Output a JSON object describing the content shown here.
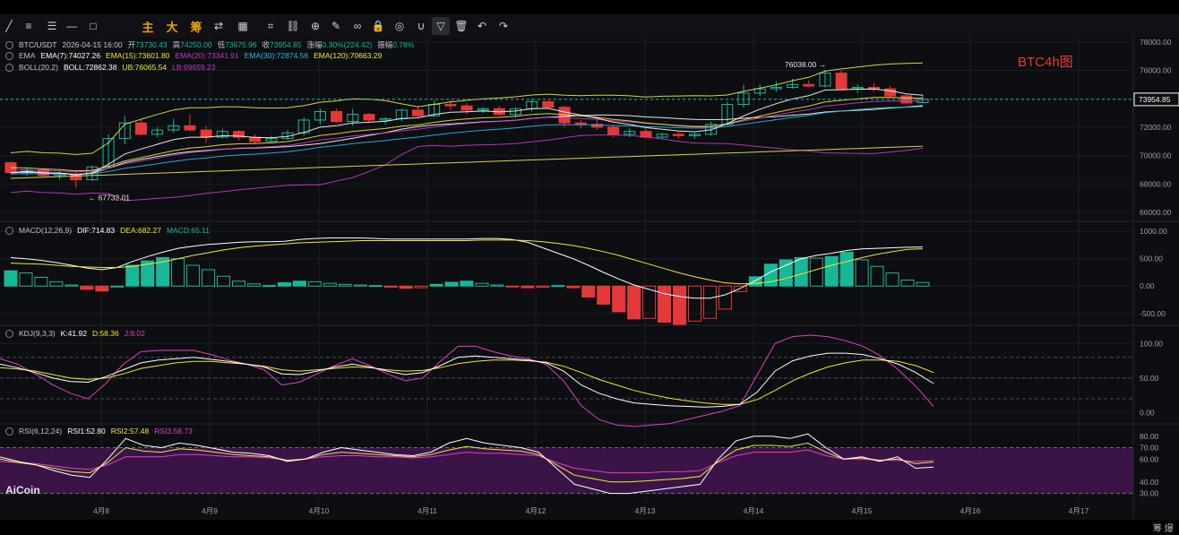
{
  "toolbar": {
    "items": [
      {
        "name": "line-tool-icon",
        "glyph": "╱"
      },
      {
        "name": "menu-icon",
        "glyph": "≡"
      },
      {
        "name": "multi-line-icon",
        "glyph": "☰"
      },
      {
        "name": "horizontal-line-icon",
        "glyph": "—"
      },
      {
        "name": "rectangle-icon",
        "glyph": "□"
      },
      {
        "name": "main-chart-button",
        "glyph": "主"
      },
      {
        "name": "big-order-button",
        "glyph": "大"
      },
      {
        "name": "chip-button",
        "glyph": "筹"
      },
      {
        "name": "convert-icon",
        "glyph": "⇄"
      },
      {
        "name": "image-icon",
        "glyph": "▦"
      },
      {
        "name": "crop-icon",
        "glyph": "⌗"
      },
      {
        "name": "link-icon",
        "glyph": "⛓"
      },
      {
        "name": "zoom-icon",
        "glyph": "⊕"
      },
      {
        "name": "brush-icon",
        "glyph": "✎"
      },
      {
        "name": "glasses-icon",
        "glyph": "∞"
      },
      {
        "name": "lock-icon",
        "glyph": "🔒"
      },
      {
        "name": "eye-icon",
        "glyph": "◎"
      },
      {
        "name": "magnet-icon",
        "glyph": "∪"
      },
      {
        "name": "filter-icon",
        "glyph": "▽"
      },
      {
        "name": "trash-icon",
        "glyph": "🗑"
      },
      {
        "name": "undo-icon",
        "glyph": "↶"
      },
      {
        "name": "redo-icon",
        "glyph": "↷"
      }
    ]
  },
  "header": {
    "pair": "BTC/USDT",
    "datetime": "2026-04-15 16:00",
    "open_label": "开",
    "open": "73730.43",
    "high_label": "高",
    "high": "74250.00",
    "low_label": "低",
    "low": "73675.96",
    "close_label": "收",
    "close": "73954.85",
    "change_label": "涨幅",
    "change": "0.30%(224.42)",
    "amp_label": "振幅",
    "amp": "0.78%"
  },
  "ema_legend": {
    "name": "EMA",
    "ema7": "EMA(7):74027.26",
    "ema15": "EMA(15):73601.80",
    "ema20": "EMA(20):73341.91",
    "ema30": "EMA(30):72874.56",
    "ema120": "EMA(120):70663.29"
  },
  "boll_legend": {
    "name": "BOLL(20,2)",
    "boll": "BOLL:72862.38",
    "ub": "UB:76065.54",
    "lb": "LB:69659.23"
  },
  "macd_legend": {
    "name": "MACD(12,26,9)",
    "dif": "DIF:714.83",
    "dea": "DEA:682.27",
    "macd": "MACD:65.11"
  },
  "kdj_legend": {
    "name": "KDJ(9,3,3)",
    "k": "K:41.92",
    "d": "D:58.36",
    "j": "J:9.02"
  },
  "rsi_legend": {
    "name": "RSI(6,12,24)",
    "rsi1": "RSI1:52.80",
    "rsi2": "RSI2:57.48",
    "rsi3": "RSI3:58.73"
  },
  "annotations": {
    "high": "76038.00",
    "low": "67732.01",
    "current_price": "73954.85"
  },
  "corner_title": "BTC4h图",
  "watermark": "AiCoin",
  "footer_glyphs": "筹 爆",
  "colors": {
    "up": "#17b897",
    "down": "#e5383b",
    "ema7": "#ffffff",
    "ema15": "#f0e442",
    "ema20": "#c23cc4",
    "ema30": "#2fb5e8",
    "ema120": "#e8e85a",
    "boll_mid": "#ffffff",
    "boll_ub": "#e8e85a",
    "boll_lb": "#c23cc4",
    "dif": "#ffffff",
    "dea": "#f0e442",
    "k": "#ffffff",
    "d": "#f0e442",
    "j": "#e040c0",
    "rsi1": "#ffffff",
    "rsi2": "#f0e442",
    "rsi3": "#e040c0"
  },
  "chart_data": [
    {
      "type": "candlestick",
      "panel": "price",
      "x_ticks": [
        "4月8",
        "4月9",
        "4月10",
        "4月11",
        "4月12",
        "4月13",
        "4月14",
        "4月15",
        "4月16",
        "4月17"
      ],
      "y_ticks": [
        66000,
        68000,
        70000,
        72000,
        74000,
        76000,
        78000
      ],
      "ylim": [
        65500,
        78300
      ],
      "candles": [
        [
          69500,
          69600,
          68700,
          68800
        ],
        [
          68800,
          69100,
          68600,
          69000
        ],
        [
          69000,
          69100,
          68500,
          68600
        ],
        [
          68600,
          68900,
          68300,
          68700
        ],
        [
          68700,
          68900,
          67732,
          68300
        ],
        [
          68300,
          69300,
          68200,
          69200
        ],
        [
          69200,
          71500,
          69100,
          71200
        ],
        [
          71200,
          72800,
          70800,
          72300
        ],
        [
          72300,
          72500,
          71400,
          71500
        ],
        [
          71500,
          72000,
          71300,
          71800
        ],
        [
          71800,
          72600,
          71600,
          72100
        ],
        [
          72100,
          72900,
          71700,
          71800
        ],
        [
          71800,
          72100,
          70900,
          71300
        ],
        [
          71300,
          71900,
          71200,
          71700
        ],
        [
          71700,
          71800,
          71100,
          71300
        ],
        [
          71300,
          71500,
          70800,
          71000
        ],
        [
          71000,
          71400,
          70900,
          71200
        ],
        [
          71200,
          71800,
          71100,
          71600
        ],
        [
          71600,
          72700,
          71400,
          72500
        ],
        [
          72500,
          73300,
          72200,
          73100
        ],
        [
          73100,
          73300,
          72300,
          72400
        ],
        [
          72400,
          73300,
          72100,
          72900
        ],
        [
          72900,
          73000,
          72300,
          72500
        ],
        [
          72500,
          72700,
          72200,
          72600
        ],
        [
          72600,
          73300,
          72400,
          73200
        ],
        [
          73200,
          73500,
          72700,
          72800
        ],
        [
          72800,
          73900,
          72700,
          73600
        ],
        [
          73600,
          73900,
          73200,
          73500
        ],
        [
          73500,
          73700,
          72900,
          73200
        ],
        [
          73200,
          73400,
          73000,
          73300
        ],
        [
          73300,
          73500,
          72800,
          72900
        ],
        [
          72900,
          73400,
          72700,
          73300
        ],
        [
          73300,
          74000,
          73100,
          73800
        ],
        [
          73800,
          73900,
          73300,
          73400
        ],
        [
          73400,
          73500,
          72000,
          72300
        ],
        [
          72300,
          72500,
          71900,
          72200
        ],
        [
          72200,
          72600,
          71800,
          72000
        ],
        [
          72000,
          72200,
          71300,
          71500
        ],
        [
          71500,
          71900,
          71300,
          71700
        ],
        [
          71700,
          71900,
          71200,
          71300
        ],
        [
          71300,
          71600,
          71200,
          71500
        ],
        [
          71500,
          71700,
          71200,
          71400
        ],
        [
          71400,
          71600,
          71200,
          71500
        ],
        [
          71500,
          72400,
          71400,
          72200
        ],
        [
          72200,
          73800,
          72100,
          73600
        ],
        [
          73600,
          75000,
          73400,
          74400
        ],
        [
          74400,
          75000,
          74200,
          74700
        ],
        [
          74700,
          75200,
          74500,
          74800
        ],
        [
          74800,
          75400,
          74700,
          75000
        ],
        [
          75000,
          75300,
          74800,
          74900
        ],
        [
          74900,
          76038,
          74800,
          75800
        ],
        [
          75800,
          76000,
          74600,
          74700
        ],
        [
          74700,
          75000,
          74400,
          74800
        ],
        [
          74800,
          75100,
          74500,
          74700
        ],
        [
          74700,
          74900,
          74100,
          74200
        ],
        [
          74200,
          74300,
          73600,
          73700
        ],
        [
          73730,
          74250,
          73676,
          73955
        ]
      ]
    },
    {
      "type": "histogram",
      "panel": "macd",
      "y_ticks": [
        1000,
        500,
        0,
        -500
      ],
      "ylim": [
        -700,
        1150
      ],
      "macd": [
        280,
        240,
        160,
        80,
        20,
        -60,
        -90,
        0,
        380,
        460,
        520,
        500,
        380,
        300,
        180,
        90,
        40,
        10,
        60,
        90,
        80,
        50,
        30,
        20,
        10,
        -20,
        -40,
        -30,
        30,
        70,
        90,
        50,
        20,
        -10,
        -30,
        -20,
        10,
        -30,
        -200,
        -330,
        -470,
        -600,
        -590,
        -660,
        -700,
        -640,
        -590,
        -420,
        -100,
        170,
        400,
        480,
        520,
        510,
        540,
        620,
        480,
        360,
        240,
        110,
        65
      ],
      "dif": [
        520,
        500,
        470,
        430,
        380,
        330,
        300,
        340,
        450,
        540,
        620,
        690,
        730,
        760,
        780,
        800,
        810,
        810,
        820,
        850,
        870,
        880,
        880,
        880,
        870,
        860,
        860,
        860,
        860,
        860,
        860,
        870,
        870,
        850,
        800,
        700,
        600,
        500,
        380,
        250,
        130,
        20,
        -60,
        -140,
        -190,
        -220,
        -220,
        -160,
        -40,
        100,
        260,
        380,
        500,
        560,
        600,
        650,
        680,
        690,
        700,
        710,
        715
      ],
      "dea": [
        420,
        410,
        400,
        380,
        360,
        350,
        340,
        340,
        360,
        400,
        440,
        500,
        560,
        610,
        660,
        700,
        730,
        750,
        770,
        790,
        800,
        810,
        820,
        830,
        830,
        830,
        830,
        830,
        830,
        830,
        830,
        840,
        840,
        840,
        830,
        810,
        780,
        740,
        690,
        630,
        560,
        480,
        400,
        320,
        240,
        170,
        110,
        60,
        40,
        50,
        80,
        140,
        220,
        300,
        380,
        450,
        520,
        580,
        630,
        670,
        682
      ]
    },
    {
      "type": "line",
      "panel": "kdj",
      "y_ticks": [
        100,
        50,
        0
      ],
      "ylim": [
        -15,
        125
      ],
      "k": [
        70,
        65,
        58,
        50,
        45,
        44,
        52,
        62,
        72,
        76,
        78,
        80,
        77,
        74,
        70,
        66,
        56,
        55,
        60,
        66,
        70,
        66,
        60,
        55,
        58,
        68,
        80,
        82,
        80,
        78,
        76,
        72,
        60,
        40,
        28,
        20,
        14,
        12,
        10,
        9,
        8,
        9,
        12,
        30,
        60,
        75,
        82,
        86,
        86,
        84,
        78,
        70,
        58,
        42
      ],
      "d": [
        65,
        63,
        60,
        55,
        50,
        48,
        50,
        56,
        64,
        68,
        72,
        74,
        74,
        72,
        70,
        67,
        62,
        60,
        62,
        64,
        66,
        65,
        62,
        60,
        61,
        65,
        71,
        74,
        76,
        76,
        75,
        73,
        67,
        58,
        48,
        40,
        32,
        26,
        21,
        17,
        14,
        12,
        12,
        19,
        32,
        46,
        57,
        66,
        72,
        76,
        76,
        74,
        68,
        58
      ],
      "j": [
        78,
        70,
        56,
        40,
        28,
        20,
        42,
        70,
        88,
        90,
        90,
        90,
        84,
        76,
        70,
        62,
        40,
        44,
        56,
        68,
        78,
        68,
        56,
        46,
        50,
        74,
        96,
        96,
        88,
        82,
        78,
        70,
        46,
        10,
        -10,
        -18,
        -20,
        -18,
        -16,
        -10,
        -4,
        2,
        10,
        55,
        100,
        110,
        112,
        110,
        104,
        96,
        82,
        62,
        38,
        9
      ]
    },
    {
      "type": "line",
      "panel": "rsi",
      "y_ticks": [
        80,
        70,
        60,
        40,
        30
      ],
      "ylim": [
        25,
        90
      ],
      "rsi1": [
        62,
        58,
        55,
        50,
        46,
        44,
        60,
        78,
        72,
        70,
        74,
        72,
        69,
        66,
        65,
        63,
        58,
        60,
        66,
        70,
        68,
        66,
        64,
        63,
        66,
        74,
        78,
        74,
        72,
        70,
        66,
        52,
        38,
        34,
        30,
        30,
        32,
        34,
        36,
        38,
        60,
        76,
        80,
        80,
        78,
        82,
        70,
        60,
        62,
        58,
        62,
        52,
        53
      ],
      "rsi2": [
        60,
        57,
        55,
        52,
        49,
        48,
        57,
        70,
        67,
        66,
        69,
        68,
        66,
        64,
        63,
        62,
        59,
        60,
        64,
        66,
        65,
        64,
        63,
        62,
        64,
        68,
        71,
        69,
        68,
        67,
        64,
        55,
        46,
        43,
        40,
        40,
        41,
        42,
        43,
        45,
        58,
        68,
        72,
        72,
        71,
        74,
        66,
        60,
        61,
        59,
        60,
        56,
        57.5
      ],
      "rsi3": [
        58,
        57,
        56,
        54,
        52,
        51,
        55,
        62,
        62,
        62,
        64,
        64,
        63,
        62,
        62,
        61,
        59,
        60,
        62,
        63,
        63,
        62,
        62,
        61,
        62,
        64,
        66,
        65,
        65,
        64,
        63,
        57,
        52,
        50,
        48,
        48,
        48,
        49,
        49,
        50,
        57,
        63,
        66,
        66,
        66,
        68,
        63,
        60,
        60,
        59,
        59,
        58,
        58.7
      ]
    }
  ]
}
